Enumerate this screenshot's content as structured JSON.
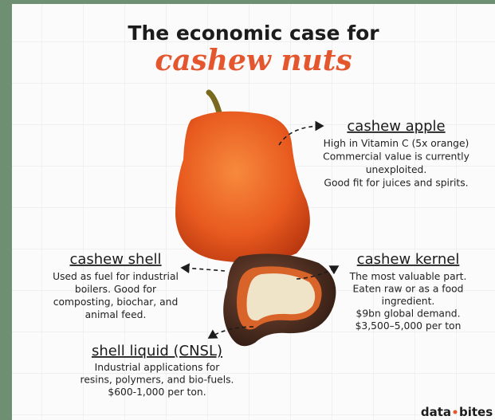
{
  "header": {
    "title": "The economic case for",
    "highlight": "cashew nuts"
  },
  "labels": [
    {
      "title": "cashew apple",
      "lines": [
        "High in Vitamin C (5x orange)",
        "Commercial value is currently",
        "unexploited.",
        "Good fit for juices and spirits."
      ]
    },
    {
      "title": "cashew shell",
      "lines": [
        "Used as fuel for industrial",
        "boilers. Good for",
        "composting, biochar, and",
        "animal feed."
      ]
    },
    {
      "title": "cashew kernel",
      "lines": [
        "The most valuable part.",
        "Eaten raw or as a food",
        "ingredient.",
        "$9bn global demand.",
        "$3,500–5,000 per ton"
      ]
    },
    {
      "title": "shell liquid (CNSL)",
      "lines": [
        "Industrial applications for",
        "resins, polymers, and bio-fuels.",
        "$600-1,000 per ton."
      ]
    }
  ],
  "footer": {
    "brand_left": "data",
    "brand_right": "bites"
  }
}
